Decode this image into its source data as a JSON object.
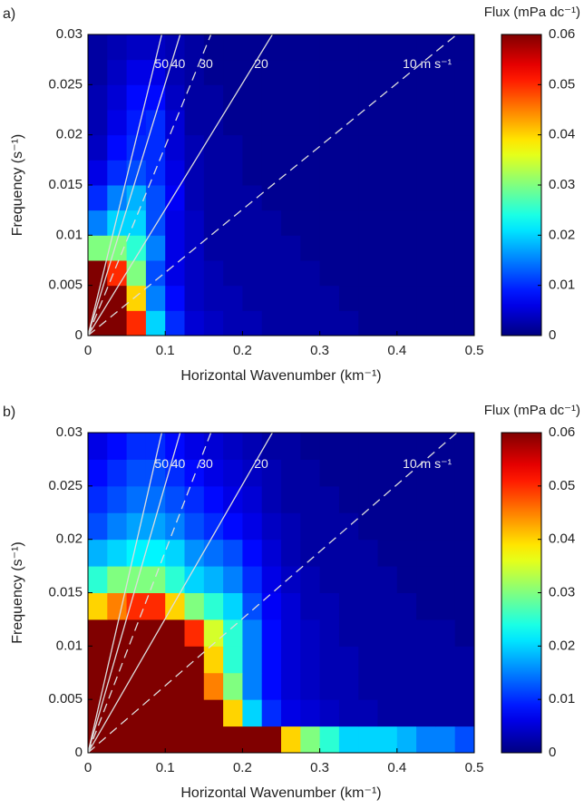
{
  "chart_data": [
    {
      "type": "heatmap",
      "panel_label": "a)",
      "xlabel": "Horizontal Wavenumber (km⁻¹)",
      "ylabel": "Frequency (s⁻¹)",
      "colorbar_label": "Flux (mPa dc⁻¹)",
      "colormap": "jet",
      "xlim": [
        0,
        0.5
      ],
      "ylim": [
        0,
        0.03
      ],
      "xticks": [
        0,
        0.1,
        0.2,
        0.3,
        0.4,
        0.5
      ],
      "yticks": [
        0,
        0.005,
        0.01,
        0.015,
        0.02,
        0.025,
        0.03
      ],
      "clim": [
        0,
        0.06
      ],
      "cticks": [
        0,
        0.01,
        0.02,
        0.03,
        0.04,
        0.05,
        0.06
      ],
      "x_edges": [
        0,
        0.025,
        0.05,
        0.075,
        0.1,
        0.125,
        0.15,
        0.175,
        0.2,
        0.225,
        0.25,
        0.275,
        0.3,
        0.325,
        0.35,
        0.375,
        0.4,
        0.425,
        0.45,
        0.475,
        0.5
      ],
      "y_edges": [
        0,
        0.0025,
        0.005,
        0.0075,
        0.01,
        0.0125,
        0.015,
        0.0175,
        0.02,
        0.0225,
        0.025,
        0.0275,
        0.03
      ],
      "z": [
        [
          0.06,
          0.06,
          0.05,
          0.02,
          0.01,
          0.005,
          0.004,
          0.003,
          0.003,
          0.002,
          0.002,
          0.002,
          0.002,
          0.002,
          0.001,
          0.001,
          0.001,
          0.001,
          0.001,
          0.001
        ],
        [
          0.06,
          0.06,
          0.04,
          0.015,
          0.008,
          0.004,
          0.003,
          0.003,
          0.002,
          0.002,
          0.002,
          0.002,
          0.002,
          0.001,
          0.001,
          0.001,
          0.001,
          0.001,
          0.001,
          0.001
        ],
        [
          0.06,
          0.05,
          0.03,
          0.012,
          0.006,
          0.004,
          0.003,
          0.002,
          0.002,
          0.002,
          0.002,
          0.002,
          0.001,
          0.001,
          0.001,
          0.001,
          0.001,
          0.001,
          0.001,
          0.001
        ],
        [
          0.03,
          0.03,
          0.025,
          0.015,
          0.006,
          0.004,
          0.002,
          0.002,
          0.002,
          0.002,
          0.002,
          0.001,
          0.001,
          0.001,
          0.001,
          0.001,
          0.001,
          0.001,
          0.001,
          0.001
        ],
        [
          0.015,
          0.02,
          0.02,
          0.012,
          0.006,
          0.004,
          0.002,
          0.002,
          0.002,
          0.002,
          0.001,
          0.001,
          0.001,
          0.001,
          0.001,
          0.001,
          0.001,
          0.001,
          0.001,
          0.001
        ],
        [
          0.01,
          0.015,
          0.018,
          0.012,
          0.007,
          0.003,
          0.002,
          0.002,
          0.002,
          0.001,
          0.001,
          0.001,
          0.001,
          0.001,
          0.001,
          0.001,
          0.001,
          0.001,
          0.001,
          0.001
        ],
        [
          0.006,
          0.01,
          0.012,
          0.01,
          0.006,
          0.003,
          0.002,
          0.002,
          0.001,
          0.001,
          0.001,
          0.001,
          0.001,
          0.001,
          0.001,
          0.001,
          0.001,
          0.001,
          0.001,
          0.001
        ],
        [
          0.004,
          0.008,
          0.01,
          0.01,
          0.005,
          0.003,
          0.002,
          0.002,
          0.001,
          0.001,
          0.001,
          0.001,
          0.001,
          0.001,
          0.001,
          0.001,
          0.001,
          0.001,
          0.001,
          0.001
        ],
        [
          0.003,
          0.006,
          0.009,
          0.01,
          0.005,
          0.002,
          0.002,
          0.001,
          0.001,
          0.001,
          0.001,
          0.001,
          0.001,
          0.001,
          0.001,
          0.001,
          0.001,
          0.001,
          0.001,
          0.001
        ],
        [
          0.003,
          0.005,
          0.008,
          0.008,
          0.004,
          0.002,
          0.002,
          0.001,
          0.001,
          0.001,
          0.001,
          0.001,
          0.001,
          0.001,
          0.001,
          0.001,
          0.001,
          0.001,
          0.001,
          0.001
        ],
        [
          0.002,
          0.004,
          0.006,
          0.006,
          0.003,
          0.002,
          0.001,
          0.001,
          0.001,
          0.001,
          0.001,
          0.001,
          0.001,
          0.001,
          0.001,
          0.001,
          0.001,
          0.001,
          0.001,
          0.001
        ],
        [
          0.002,
          0.003,
          0.004,
          0.004,
          0.003,
          0.002,
          0.001,
          0.001,
          0.001,
          0.001,
          0.001,
          0.001,
          0.001,
          0.001,
          0.001,
          0.001,
          0.001,
          0.001,
          0.001,
          0.001
        ]
      ],
      "phase_lines": [
        {
          "speed": 50,
          "label": "50",
          "dashed": false
        },
        {
          "speed": 40,
          "label": "40",
          "dashed": false
        },
        {
          "speed": 30,
          "label": "30",
          "dashed": true
        },
        {
          "speed": 20,
          "label": "20",
          "dashed": false
        },
        {
          "speed": 10,
          "label": "10 m s⁻¹",
          "dashed": true
        }
      ]
    },
    {
      "type": "heatmap",
      "panel_label": "b)",
      "xlabel": "Horizontal Wavenumber (km⁻¹)",
      "ylabel": "Frequency (s⁻¹)",
      "colorbar_label": "Flux (mPa dc⁻¹)",
      "colormap": "jet",
      "xlim": [
        0,
        0.5
      ],
      "ylim": [
        0,
        0.03
      ],
      "xticks": [
        0,
        0.1,
        0.2,
        0.3,
        0.4,
        0.5
      ],
      "yticks": [
        0,
        0.005,
        0.01,
        0.015,
        0.02,
        0.025,
        0.03
      ],
      "clim": [
        0,
        0.06
      ],
      "cticks": [
        0,
        0.01,
        0.02,
        0.03,
        0.04,
        0.05,
        0.06
      ],
      "x_edges": [
        0,
        0.025,
        0.05,
        0.075,
        0.1,
        0.125,
        0.15,
        0.175,
        0.2,
        0.225,
        0.25,
        0.275,
        0.3,
        0.325,
        0.35,
        0.375,
        0.4,
        0.425,
        0.45,
        0.475,
        0.5
      ],
      "y_edges": [
        0,
        0.0025,
        0.005,
        0.0075,
        0.01,
        0.0125,
        0.015,
        0.0175,
        0.02,
        0.0225,
        0.025,
        0.0275,
        0.03
      ],
      "z": [
        [
          0.06,
          0.06,
          0.06,
          0.06,
          0.06,
          0.06,
          0.06,
          0.06,
          0.06,
          0.06,
          0.04,
          0.03,
          0.025,
          0.02,
          0.02,
          0.02,
          0.018,
          0.015,
          0.015,
          0.012
        ],
        [
          0.06,
          0.06,
          0.06,
          0.06,
          0.06,
          0.06,
          0.06,
          0.04,
          0.02,
          0.01,
          0.006,
          0.005,
          0.004,
          0.003,
          0.003,
          0.002,
          0.002,
          0.002,
          0.002,
          0.002
        ],
        [
          0.06,
          0.06,
          0.06,
          0.06,
          0.06,
          0.06,
          0.045,
          0.03,
          0.015,
          0.008,
          0.005,
          0.004,
          0.003,
          0.003,
          0.002,
          0.002,
          0.002,
          0.002,
          0.002,
          0.002
        ],
        [
          0.06,
          0.06,
          0.06,
          0.06,
          0.06,
          0.06,
          0.04,
          0.025,
          0.015,
          0.008,
          0.005,
          0.004,
          0.003,
          0.003,
          0.002,
          0.002,
          0.002,
          0.002,
          0.002,
          0.002
        ],
        [
          0.06,
          0.06,
          0.06,
          0.06,
          0.06,
          0.05,
          0.035,
          0.025,
          0.015,
          0.008,
          0.005,
          0.004,
          0.003,
          0.002,
          0.002,
          0.002,
          0.002,
          0.002,
          0.002,
          0.001
        ],
        [
          0.04,
          0.045,
          0.05,
          0.05,
          0.04,
          0.03,
          0.025,
          0.02,
          0.012,
          0.007,
          0.005,
          0.003,
          0.003,
          0.002,
          0.002,
          0.002,
          0.002,
          0.001,
          0.001,
          0.001
        ],
        [
          0.025,
          0.03,
          0.03,
          0.03,
          0.025,
          0.02,
          0.018,
          0.015,
          0.01,
          0.006,
          0.004,
          0.003,
          0.002,
          0.002,
          0.002,
          0.002,
          0.001,
          0.001,
          0.001,
          0.001
        ],
        [
          0.018,
          0.02,
          0.022,
          0.022,
          0.02,
          0.016,
          0.014,
          0.012,
          0.008,
          0.005,
          0.003,
          0.002,
          0.002,
          0.002,
          0.002,
          0.001,
          0.001,
          0.001,
          0.001,
          0.001
        ],
        [
          0.012,
          0.015,
          0.017,
          0.017,
          0.015,
          0.012,
          0.01,
          0.008,
          0.006,
          0.004,
          0.003,
          0.002,
          0.002,
          0.002,
          0.001,
          0.001,
          0.001,
          0.001,
          0.001,
          0.001
        ],
        [
          0.01,
          0.012,
          0.014,
          0.014,
          0.012,
          0.01,
          0.008,
          0.006,
          0.005,
          0.003,
          0.002,
          0.002,
          0.002,
          0.001,
          0.001,
          0.001,
          0.001,
          0.001,
          0.001,
          0.001
        ],
        [
          0.008,
          0.01,
          0.012,
          0.012,
          0.01,
          0.008,
          0.006,
          0.005,
          0.004,
          0.003,
          0.002,
          0.002,
          0.001,
          0.001,
          0.001,
          0.001,
          0.001,
          0.001,
          0.001,
          0.001
        ],
        [
          0.006,
          0.008,
          0.01,
          0.01,
          0.008,
          0.006,
          0.005,
          0.004,
          0.003,
          0.002,
          0.002,
          0.001,
          0.001,
          0.001,
          0.001,
          0.001,
          0.001,
          0.001,
          0.001,
          0.001
        ]
      ],
      "phase_lines": [
        {
          "speed": 50,
          "label": "50",
          "dashed": false
        },
        {
          "speed": 40,
          "label": "40",
          "dashed": false
        },
        {
          "speed": 30,
          "label": "30",
          "dashed": true
        },
        {
          "speed": 20,
          "label": "20",
          "dashed": false
        },
        {
          "speed": 10,
          "label": "10 m s⁻¹",
          "dashed": true
        }
      ]
    }
  ]
}
